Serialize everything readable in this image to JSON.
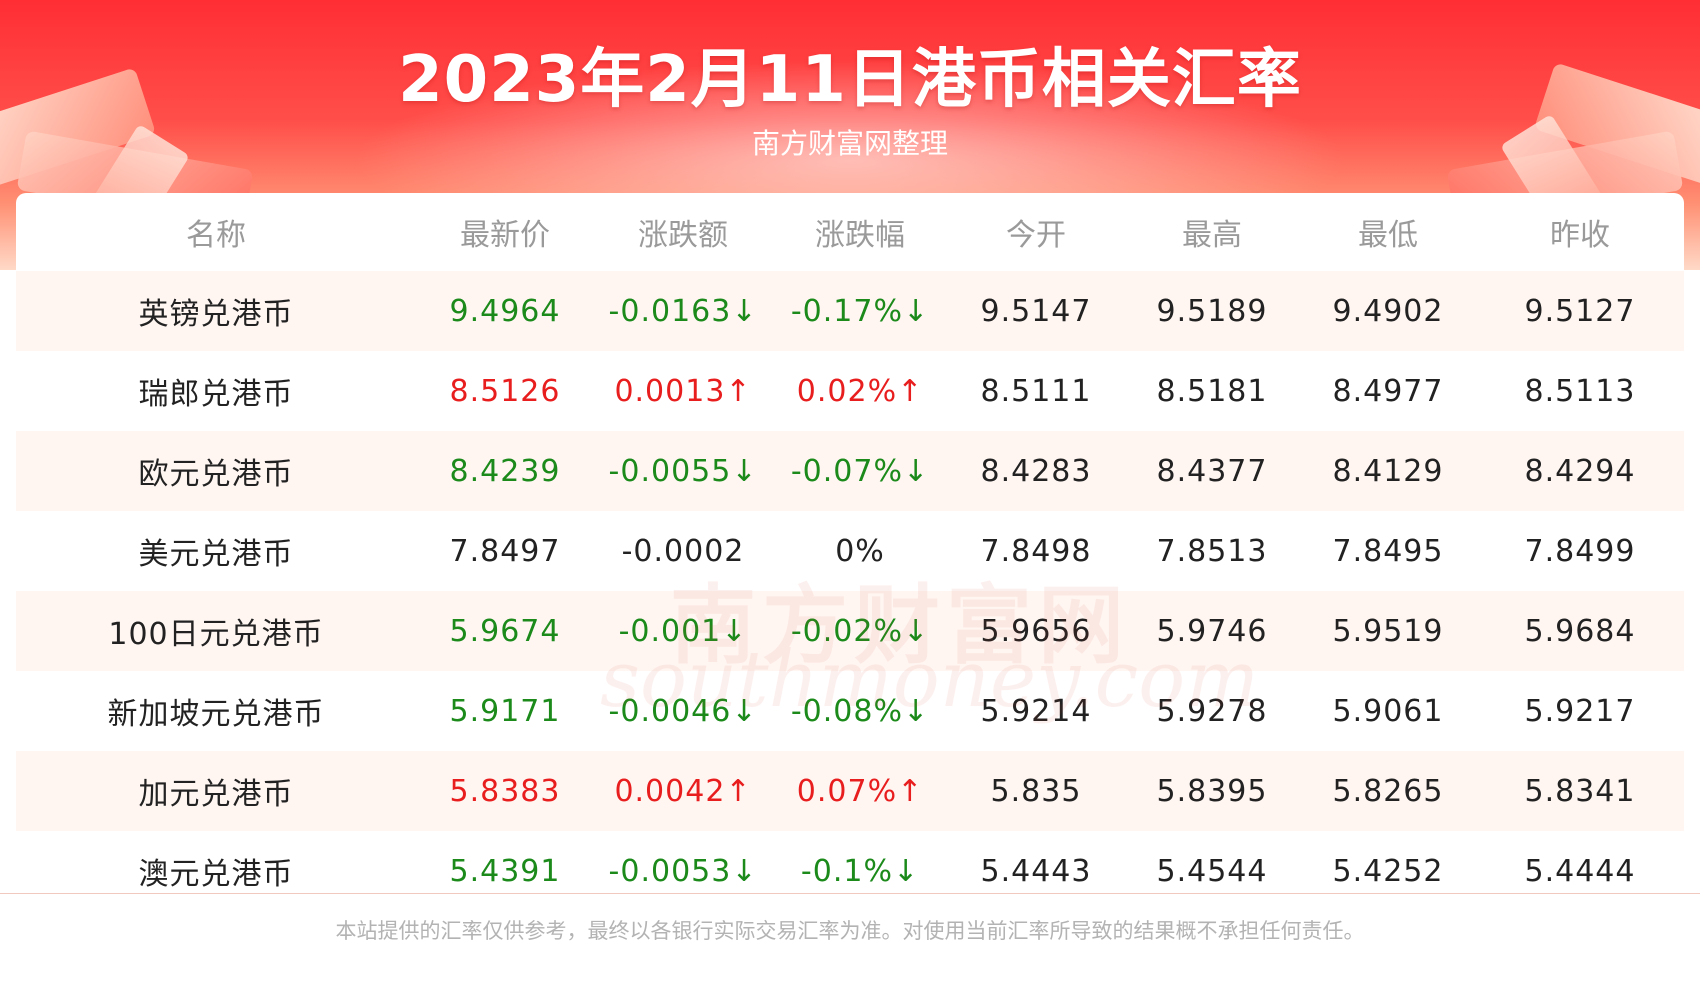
{
  "header": {
    "title": "2023年2月11日港币相关汇率",
    "subtitle": "南方财富网整理"
  },
  "table": {
    "columns": [
      "名称",
      "最新价",
      "涨跌额",
      "涨跌幅",
      "今开",
      "最高",
      "最低",
      "昨收"
    ],
    "rows": [
      {
        "name": "英镑兑港币",
        "latest": "9.4964",
        "change": "-0.0163↓",
        "change_pct": "-0.17%↓",
        "open": "9.5147",
        "high": "9.5189",
        "low": "9.4902",
        "prev_close": "9.5127",
        "trend": "down"
      },
      {
        "name": "瑞郎兑港币",
        "latest": "8.5126",
        "change": "0.0013↑",
        "change_pct": "0.02%↑",
        "open": "8.5111",
        "high": "8.5181",
        "low": "8.4977",
        "prev_close": "8.5113",
        "trend": "up"
      },
      {
        "name": "欧元兑港币",
        "latest": "8.4239",
        "change": "-0.0055↓",
        "change_pct": "-0.07%↓",
        "open": "8.4283",
        "high": "8.4377",
        "low": "8.4129",
        "prev_close": "8.4294",
        "trend": "down"
      },
      {
        "name": "美元兑港币",
        "latest": "7.8497",
        "change": "-0.0002",
        "change_pct": "0%",
        "open": "7.8498",
        "high": "7.8513",
        "low": "7.8495",
        "prev_close": "7.8499",
        "trend": "flat"
      },
      {
        "name": "100日元兑港币",
        "latest": "5.9674",
        "change": "-0.001↓",
        "change_pct": "-0.02%↓",
        "open": "5.9656",
        "high": "5.9746",
        "low": "5.9519",
        "prev_close": "5.9684",
        "trend": "down"
      },
      {
        "name": "新加坡元兑港币",
        "latest": "5.9171",
        "change": "-0.0046↓",
        "change_pct": "-0.08%↓",
        "open": "5.9214",
        "high": "5.9278",
        "low": "5.9061",
        "prev_close": "5.9217",
        "trend": "down"
      },
      {
        "name": "加元兑港币",
        "latest": "5.8383",
        "change": "0.0042↑",
        "change_pct": "0.07%↑",
        "open": "5.835",
        "high": "5.8395",
        "low": "5.8265",
        "prev_close": "5.8341",
        "trend": "up"
      },
      {
        "name": "澳元兑港币",
        "latest": "5.4391",
        "change": "-0.0053↓",
        "change_pct": "-0.1%↓",
        "open": "5.4443",
        "high": "5.4544",
        "low": "5.4252",
        "prev_close": "5.4444",
        "trend": "down"
      }
    ]
  },
  "watermark": {
    "cn": "南方财富网",
    "en": "southmoney.com"
  },
  "footer": {
    "disclaimer": "本站提供的汇率仅供参考，最终以各银行实际交易汇率为准。对使用当前汇率所导致的结果概不承担任何责任。"
  },
  "colors": {
    "header_red": "#ff2e35",
    "down_green": "#1b8a1b",
    "up_red": "#e81e1e",
    "row_tint": "#fff6f2"
  }
}
